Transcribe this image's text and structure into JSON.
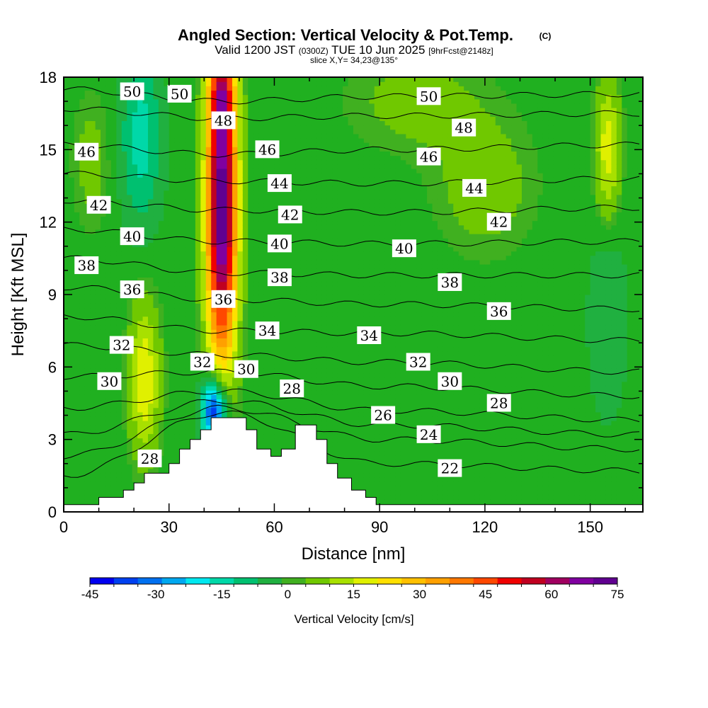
{
  "header": {
    "title_main": "Angled Section: Vertical Velocity & Pot.Temp.",
    "title_tag": "(C)",
    "valid_prefix": "Valid 1200 JST",
    "valid_utc": "(0300Z)",
    "valid_date": "TUE 10 Jun 2025",
    "fcst_info": "[9hrFcst@2148z]",
    "slice": "slice X,Y= 34,23@135°"
  },
  "chart_data": {
    "type": "heatmap",
    "xlabel": "Distance [nm]",
    "ylabel": "Height [Kft MSL]",
    "xlim": [
      0,
      165
    ],
    "ylim": [
      0,
      18
    ],
    "xticks": [
      0,
      30,
      60,
      90,
      120,
      150
    ],
    "yticks": [
      0,
      3,
      6,
      9,
      12,
      15,
      18
    ],
    "colorbar": {
      "label": "Vertical Velocity [cm/s]",
      "range": [
        -45,
        75
      ],
      "step": 5,
      "tick_values": [
        -45,
        -30,
        -15,
        0,
        15,
        30,
        45,
        60,
        75
      ],
      "tick_labels": [
        "-45",
        "-30",
        "-15",
        "0",
        "15",
        "30",
        "45",
        "60",
        "75"
      ],
      "colors": [
        "#0000f0",
        "#0040f0",
        "#0070f0",
        "#00a8f0",
        "#00e8f0",
        "#00d8a8",
        "#00c070",
        "#20b040",
        "#40b020",
        "#70c800",
        "#a8e000",
        "#e0f000",
        "#ffe000",
        "#ffc000",
        "#ffa000",
        "#ff7800",
        "#ff4800",
        "#f00000",
        "#c00020",
        "#a00060",
        "#8000a0",
        "#600090"
      ],
      "zero_color": "#20b020"
    },
    "terrain_kft": [
      [
        0,
        0.3
      ],
      [
        10,
        0.3
      ],
      [
        10,
        0.6
      ],
      [
        17,
        0.6
      ],
      [
        17,
        0.9
      ],
      [
        20,
        0.9
      ],
      [
        20,
        1.2
      ],
      [
        23,
        1.2
      ],
      [
        23,
        1.6
      ],
      [
        30,
        1.6
      ],
      [
        30,
        2.0
      ],
      [
        33,
        2.0
      ],
      [
        33,
        2.6
      ],
      [
        36,
        2.6
      ],
      [
        36,
        3.0
      ],
      [
        39,
        3.0
      ],
      [
        39,
        3.4
      ],
      [
        42,
        3.4
      ],
      [
        42,
        3.9
      ],
      [
        52,
        3.9
      ],
      [
        52,
        3.4
      ],
      [
        55,
        3.4
      ],
      [
        55,
        2.6
      ],
      [
        59,
        2.6
      ],
      [
        59,
        2.3
      ],
      [
        62,
        2.3
      ],
      [
        62,
        2.6
      ],
      [
        66,
        2.6
      ],
      [
        66,
        3.6
      ],
      [
        72,
        3.6
      ],
      [
        72,
        3.0
      ],
      [
        75,
        3.0
      ],
      [
        75,
        2.0
      ],
      [
        78,
        2.0
      ],
      [
        78,
        1.4
      ],
      [
        82,
        1.4
      ],
      [
        82,
        0.9
      ],
      [
        86,
        0.9
      ],
      [
        86,
        0.6
      ],
      [
        89,
        0.6
      ],
      [
        89,
        0.3
      ],
      [
        165,
        0.3
      ]
    ],
    "velocity_features": [
      {
        "x": 45,
        "y": 12.5,
        "sx": 3,
        "sy": 4.5,
        "value": 75
      },
      {
        "x": 45,
        "y": 17.5,
        "sx": 2.5,
        "sy": 1.5,
        "value": 25
      },
      {
        "x": 23,
        "y": 5.5,
        "sx": 3,
        "sy": 2.2,
        "value": 20
      },
      {
        "x": 155,
        "y": 15,
        "sx": 2.5,
        "sy": 2,
        "value": 18
      },
      {
        "x": 43,
        "y": 4.2,
        "sx": 2.5,
        "sy": 1,
        "value": -45
      },
      {
        "x": 22,
        "y": 15.5,
        "sx": 4,
        "sy": 2.5,
        "value": -15
      },
      {
        "x": 8,
        "y": 14.5,
        "sx": 4,
        "sy": 2,
        "value": 6
      },
      {
        "x": 100,
        "y": 17,
        "sx": 14,
        "sy": 1.5,
        "value": 6
      },
      {
        "x": 120,
        "y": 13.5,
        "sx": 10,
        "sy": 2,
        "value": 7
      },
      {
        "x": 155,
        "y": 8,
        "sx": 4,
        "sy": 3,
        "value": -6
      }
    ],
    "theta_isotherms": [
      {
        "value": 50,
        "points": [
          [
            0,
            17.5
          ],
          [
            45,
            17.0
          ],
          [
            90,
            17.2
          ],
          [
            165,
            17.3
          ]
        ]
      },
      {
        "value": 48,
        "points": [
          [
            0,
            16.7
          ],
          [
            45,
            16.3
          ],
          [
            90,
            16.4
          ],
          [
            165,
            16.5
          ]
        ]
      },
      {
        "value": 46,
        "points": [
          [
            0,
            15.2
          ],
          [
            45,
            14.8
          ],
          [
            90,
            15.0
          ],
          [
            165,
            15.2
          ]
        ]
      },
      {
        "value": 44,
        "points": [
          [
            0,
            14.0
          ],
          [
            45,
            13.7
          ],
          [
            90,
            13.6
          ],
          [
            165,
            13.8
          ]
        ]
      },
      {
        "value": 42,
        "points": [
          [
            0,
            12.9
          ],
          [
            45,
            12.5
          ],
          [
            90,
            12.4
          ],
          [
            165,
            12.6
          ]
        ]
      },
      {
        "value": 40,
        "points": [
          [
            0,
            11.7
          ],
          [
            45,
            11.2
          ],
          [
            90,
            11.1
          ],
          [
            165,
            11.2
          ]
        ]
      },
      {
        "value": 38,
        "points": [
          [
            0,
            10.5
          ],
          [
            45,
            9.9
          ],
          [
            90,
            9.8
          ],
          [
            165,
            9.8
          ]
        ]
      },
      {
        "value": 36,
        "points": [
          [
            0,
            9.3
          ],
          [
            45,
            8.8
          ],
          [
            90,
            8.6
          ],
          [
            165,
            8.4
          ]
        ]
      },
      {
        "value": 34,
        "points": [
          [
            0,
            8.1
          ],
          [
            45,
            7.5
          ],
          [
            90,
            7.4
          ],
          [
            165,
            7.1
          ]
        ]
      },
      {
        "value": 32,
        "points": [
          [
            0,
            6.9
          ],
          [
            45,
            6.5
          ],
          [
            90,
            6.2
          ],
          [
            165,
            5.8
          ]
        ]
      },
      {
        "value": 30,
        "points": [
          [
            0,
            5.6
          ],
          [
            45,
            5.8
          ],
          [
            90,
            5.2
          ],
          [
            165,
            4.8
          ]
        ]
      },
      {
        "value": 28,
        "points": [
          [
            0,
            4.3
          ],
          [
            45,
            5.0
          ],
          [
            90,
            4.2
          ],
          [
            165,
            3.8
          ]
        ]
      },
      {
        "value": 26,
        "points": [
          [
            0,
            3.2
          ],
          [
            45,
            4.6
          ],
          [
            90,
            3.6
          ],
          [
            165,
            3.2
          ]
        ]
      },
      {
        "value": 24,
        "points": [
          [
            0,
            2.3
          ],
          [
            45,
            4.3
          ],
          [
            90,
            3.0
          ],
          [
            165,
            2.6
          ]
        ]
      },
      {
        "value": 22,
        "points": [
          [
            0,
            1.5
          ],
          [
            45,
            4.1
          ],
          [
            90,
            2.0
          ],
          [
            165,
            1.7
          ]
        ]
      }
    ],
    "isotherm_labels": [
      {
        "text": "50",
        "x": 19.5,
        "y": 17.4
      },
      {
        "text": "50",
        "x": 33,
        "y": 17.3
      },
      {
        "text": "50",
        "x": 104,
        "y": 17.2
      },
      {
        "text": "48",
        "x": 45.5,
        "y": 16.2
      },
      {
        "text": "48",
        "x": 114,
        "y": 15.9
      },
      {
        "text": "46",
        "x": 6.5,
        "y": 14.9
      },
      {
        "text": "46",
        "x": 58,
        "y": 15.0
      },
      {
        "text": "46",
        "x": 104,
        "y": 14.7
      },
      {
        "text": "44",
        "x": 61.5,
        "y": 13.6
      },
      {
        "text": "44",
        "x": 117,
        "y": 13.4
      },
      {
        "text": "42",
        "x": 10,
        "y": 12.7
      },
      {
        "text": "42",
        "x": 64.5,
        "y": 12.3
      },
      {
        "text": "42",
        "x": 124,
        "y": 12.0
      },
      {
        "text": "40",
        "x": 19.5,
        "y": 11.4
      },
      {
        "text": "40",
        "x": 61.5,
        "y": 11.1
      },
      {
        "text": "40",
        "x": 97,
        "y": 10.9
      },
      {
        "text": "38",
        "x": 6.5,
        "y": 10.2
      },
      {
        "text": "38",
        "x": 61.5,
        "y": 9.7
      },
      {
        "text": "38",
        "x": 110,
        "y": 9.5
      },
      {
        "text": "36",
        "x": 19.5,
        "y": 9.2
      },
      {
        "text": "36",
        "x": 45.5,
        "y": 8.8
      },
      {
        "text": "36",
        "x": 124,
        "y": 8.3
      },
      {
        "text": "34",
        "x": 58,
        "y": 7.5
      },
      {
        "text": "34",
        "x": 87,
        "y": 7.3
      },
      {
        "text": "32",
        "x": 16.5,
        "y": 6.9
      },
      {
        "text": "32",
        "x": 39.5,
        "y": 6.2
      },
      {
        "text": "32",
        "x": 101,
        "y": 6.2
      },
      {
        "text": "30",
        "x": 13,
        "y": 5.4
      },
      {
        "text": "30",
        "x": 52,
        "y": 5.9
      },
      {
        "text": "30",
        "x": 110,
        "y": 5.4
      },
      {
        "text": "28",
        "x": 24.5,
        "y": 2.2
      },
      {
        "text": "28",
        "x": 65,
        "y": 5.1
      },
      {
        "text": "28",
        "x": 124,
        "y": 4.5
      },
      {
        "text": "26",
        "x": 91,
        "y": 4.0
      },
      {
        "text": "24",
        "x": 104,
        "y": 3.2
      },
      {
        "text": "22",
        "x": 110,
        "y": 1.8
      }
    ]
  }
}
